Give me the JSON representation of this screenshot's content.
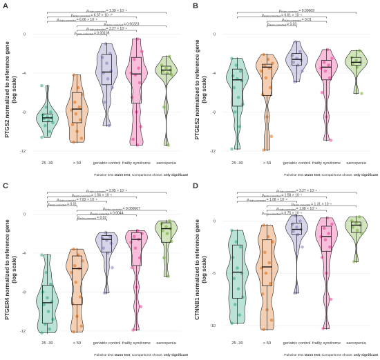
{
  "chart_data": [
    {
      "type": "violin",
      "panel": "A",
      "y_label": [
        "PTGS2 normalized to reference gene",
        "(log scale)"
      ],
      "categories": [
        "25 -30",
        "> 50",
        "geriatric control",
        "frailty syndrome",
        "sarcopenia"
      ],
      "ylim": [
        -12.5,
        2.5
      ],
      "yticks": [
        0,
        -4,
        -8,
        -12
      ],
      "grid": true,
      "groups": [
        {
          "color": "#1b9e77",
          "box": {
            "low": -10.5,
            "q1": -9.0,
            "median": -8.6,
            "q3": -8.2,
            "high": -5.2
          },
          "points": [
            -5.3,
            -7.5,
            -8.0,
            -8.3,
            -8.5,
            -8.6,
            -8.7,
            -8.9,
            -9.1,
            -9.4,
            -10.0,
            -10.6
          ]
        },
        {
          "color": "#d95f02",
          "box": {
            "low": -11.2,
            "q1": -9.1,
            "median": -7.7,
            "q3": -6.0,
            "high": -4.1
          },
          "points": [
            -4.2,
            -5.5,
            -6.2,
            -7.0,
            -7.5,
            -7.8,
            -8.2,
            -8.8,
            -9.3,
            -10.0,
            -10.7,
            -11.1
          ]
        },
        {
          "color": "#7570b3",
          "box": {
            "low": -9.5,
            "q1": -5.2,
            "median": -3.9,
            "q3": -2.1,
            "high": -0.9
          },
          "points": [
            -1.0,
            -2.0,
            -2.4,
            -3.0,
            -3.8,
            -4.0,
            -4.6,
            -5.5,
            -7.0,
            -9.4
          ]
        },
        {
          "color": "#e7298a",
          "box": {
            "low": -11.5,
            "q1": -7.1,
            "median": -4.1,
            "q3": -2.4,
            "high": -0.4
          },
          "points": [
            -0.5,
            -1.8,
            -2.6,
            -3.5,
            -4.0,
            -4.2,
            -5.0,
            -6.5,
            -8.0,
            -9.5,
            -10.8,
            -11.4
          ]
        },
        {
          "color": "#66a61e",
          "box": {
            "low": -11.5,
            "q1": -4.1,
            "median": -3.7,
            "q3": -3.3,
            "high": -2.2
          },
          "points": [
            -2.3,
            -3.2,
            -3.5,
            -3.7,
            -3.8,
            -4.0,
            -4.2,
            -7.5,
            -11.4
          ]
        }
      ],
      "comparisons": [
        {
          "groups": [
            "25 -30",
            "sarcopenia"
          ],
          "label": "= 1.39 × 10⁻⁶"
        },
        {
          "groups": [
            "25 -30",
            "frailty syndrome"
          ],
          "label": "= 6.37 × 10⁻¹⁰"
        },
        {
          "groups": [
            "25 -30",
            "geriatric control"
          ],
          "label": "= 6.06 × 10⁻⁶"
        },
        {
          "groups": [
            "> 50",
            "sarcopenia"
          ],
          "label": "= 0.00323"
        },
        {
          "groups": [
            "> 50",
            "frailty syndrome"
          ],
          "label": "= 2.27 × 10⁻⁶"
        },
        {
          "groups": [
            "> 50",
            "geriatric control"
          ],
          "label": "= 0.00108"
        }
      ]
    },
    {
      "type": "violin",
      "panel": "B",
      "y_label": [
        "PTGES2 normalized to reference gene",
        "(log scale)"
      ],
      "categories": [
        "25 -30",
        "> 50",
        "geriatric control",
        "frailty syndrome",
        "sarcopenia"
      ],
      "ylim": [
        -12.5,
        2.5
      ],
      "yticks": [
        0,
        -4,
        -8,
        -12
      ],
      "grid": true,
      "groups": [
        {
          "color": "#1b9e77",
          "box": {
            "low": -11.9,
            "q1": -7.4,
            "median": -4.7,
            "q3": -3.6,
            "high": -2.4
          },
          "points": [
            -2.5,
            -3.2,
            -3.8,
            -4.3,
            -4.6,
            -4.8,
            -5.5,
            -6.5,
            -7.2,
            -8.0,
            -9.5,
            -11.8
          ]
        },
        {
          "color": "#d95f02",
          "box": {
            "low": -12.0,
            "q1": -6.3,
            "median": -3.4,
            "q3": -3.1,
            "high": -2.0
          },
          "points": [
            -2.1,
            -2.6,
            -3.0,
            -3.3,
            -3.5,
            -3.8,
            -4.5,
            -5.5,
            -6.2,
            -8.5,
            -10.5,
            -11.9
          ]
        },
        {
          "color": "#7570b3",
          "box": {
            "low": -5.0,
            "q1": -3.2,
            "median": -2.6,
            "q3": -2.0,
            "high": -0.8
          },
          "points": [
            -0.8,
            -1.8,
            -2.2,
            -2.5,
            -2.7,
            -2.9,
            -3.2,
            -3.8,
            -4.9
          ]
        },
        {
          "color": "#e7298a",
          "box": {
            "low": -11.0,
            "q1": -4.7,
            "median": -3.4,
            "q3": -2.7,
            "high": -1.5
          },
          "points": [
            -1.6,
            -2.5,
            -2.9,
            -3.2,
            -3.5,
            -3.8,
            -4.5,
            -6.0,
            -8.5,
            -10.9
          ]
        },
        {
          "color": "#66a61e",
          "box": {
            "low": -6.2,
            "q1": -3.2,
            "median": -2.9,
            "q3": -2.4,
            "high": -1.6
          },
          "points": [
            -1.7,
            -2.4,
            -2.7,
            -2.9,
            -3.1,
            -3.4,
            -6.1
          ]
        }
      ],
      "comparisons": [
        {
          "groups": [
            "25 -30",
            "sarcopenia"
          ],
          "label": "= 0.00669"
        },
        {
          "groups": [
            "25 -30",
            "frailty syndrome"
          ],
          "label": "= 6.61 × 10⁻⁵"
        },
        {
          "groups": [
            "> 50",
            "frailty syndrome"
          ],
          "label": "= 0.01"
        },
        {
          "groups": [
            "> 50",
            "geriatric control"
          ],
          "label": "= 0.03"
        }
      ]
    },
    {
      "type": "violin",
      "panel": "C",
      "y_label": [
        "PTGER4 normalized to reference gene",
        "(log scale)"
      ],
      "categories": [
        "25 -30",
        "> 50",
        "geriatric control",
        "frailty syndrome",
        "sarcopenia"
      ],
      "ylim": [
        -12.5,
        2.5
      ],
      "yticks": [
        0,
        -4,
        -8,
        -12
      ],
      "grid": true,
      "groups": [
        {
          "color": "#1b9e77",
          "box": {
            "low": -12.3,
            "q1": -11.2,
            "median": -9.1,
            "q3": -7.3,
            "high": -4.1
          },
          "points": [
            -4.2,
            -6.0,
            -7.2,
            -8.0,
            -8.6,
            -9.0,
            -9.3,
            -10.0,
            -10.8,
            -11.3,
            -11.8,
            -12.2
          ]
        },
        {
          "color": "#d95f02",
          "box": {
            "low": -12.2,
            "q1": -9.3,
            "median": -5.6,
            "q3": -4.3,
            "high": -3.5
          },
          "points": [
            -3.6,
            -4.2,
            -4.8,
            -5.3,
            -5.6,
            -6.0,
            -7.0,
            -8.5,
            -9.2,
            -10.5,
            -11.5,
            -12.1
          ]
        },
        {
          "color": "#7570b3",
          "box": {
            "low": -8.2,
            "q1": -3.9,
            "median": -2.6,
            "q3": -2.2,
            "high": -1.8
          },
          "points": [
            -1.9,
            -2.3,
            -2.5,
            -2.7,
            -3.0,
            -3.5,
            -4.0,
            -5.5,
            -8.1
          ]
        },
        {
          "color": "#e7298a",
          "box": {
            "low": -12.0,
            "q1": -5.3,
            "median": -2.6,
            "q3": -1.9,
            "high": -1.6
          },
          "points": [
            -1.7,
            -2.0,
            -2.3,
            -2.6,
            -2.9,
            -3.5,
            -4.5,
            -5.5,
            -7.5,
            -9.5,
            -11.9
          ]
        },
        {
          "color": "#66a61e",
          "box": {
            "low": -6.5,
            "q1": -2.9,
            "median": -1.5,
            "q3": -0.9,
            "high": -0.6
          },
          "points": [
            -0.7,
            -1.0,
            -1.3,
            -1.5,
            -1.7,
            -2.0,
            -2.8,
            -4.5,
            -6.4
          ]
        }
      ],
      "comparisons": [
        {
          "groups": [
            "25 -30",
            "sarcopenia"
          ],
          "label": "= 2.95 × 10⁻⁸"
        },
        {
          "groups": [
            "25 -30",
            "frailty syndrome"
          ],
          "label": "= 1.56 × 10⁻⁶"
        },
        {
          "groups": [
            "25 -30",
            "geriatric control"
          ],
          "label": "= 7.82 × 10⁻⁶"
        },
        {
          "groups": [
            "25 -30",
            "> 50"
          ],
          "label": "= 0.01"
        },
        {
          "groups": [
            "> 50",
            "sarcopenia"
          ],
          "label": "= 0.000667"
        },
        {
          "groups": [
            "> 50",
            "frailty syndrome"
          ],
          "label": "= 0.0044"
        },
        {
          "groups": [
            "> 50",
            "geriatric control"
          ],
          "label": "= 0.02"
        }
      ]
    },
    {
      "type": "violin",
      "panel": "D",
      "y_label": [
        "CTNNB1 normalized to reference gene",
        "(log scale)"
      ],
      "categories": [
        "25 -30",
        "> 50",
        "geriatric control",
        "frailty syndrome",
        "sarcopenia"
      ],
      "ylim": [
        -11,
        3
      ],
      "yticks": [
        0,
        -5,
        -10
      ],
      "grid": true,
      "groups": [
        {
          "color": "#1b9e77",
          "box": {
            "low": -9.9,
            "q1": -7.4,
            "median": -4.9,
            "q3": -2.3,
            "high": -0.8
          },
          "points": [
            -0.9,
            -2.0,
            -2.5,
            -3.5,
            -4.5,
            -5.0,
            -5.5,
            -6.5,
            -7.3,
            -8.0,
            -9.0,
            -9.8
          ]
        },
        {
          "color": "#d95f02",
          "box": {
            "low": -10.5,
            "q1": -6.2,
            "median": -4.4,
            "q3": -1.8,
            "high": -0.3
          },
          "points": [
            -0.4,
            -1.5,
            -2.0,
            -3.0,
            -4.0,
            -4.5,
            -5.0,
            -6.0,
            -7.0,
            -8.5,
            -9.5,
            -10.4
          ]
        },
        {
          "color": "#7570b3",
          "box": {
            "low": -7.0,
            "q1": -1.3,
            "median": -0.8,
            "q3": -0.2,
            "high": 0.6
          },
          "points": [
            0.5,
            0.0,
            -0.3,
            -0.6,
            -0.8,
            -1.0,
            -1.3,
            -2.5,
            -6.9
          ]
        },
        {
          "color": "#e7298a",
          "box": {
            "low": -10.4,
            "q1": -2.9,
            "median": -1.5,
            "q3": -0.5,
            "high": 0.4
          },
          "points": [
            0.3,
            -0.3,
            -0.7,
            -1.2,
            -1.5,
            -1.8,
            -2.5,
            -3.5,
            -5.0,
            -7.5,
            -10.3
          ]
        },
        {
          "color": "#66a61e",
          "box": {
            "low": -4.0,
            "q1": -1.1,
            "median": -0.4,
            "q3": -0.1,
            "high": 0.5
          },
          "points": [
            0.4,
            0.0,
            -0.2,
            -0.4,
            -0.6,
            -0.9,
            -1.2,
            -3.9
          ]
        }
      ],
      "comparisons": [
        {
          "groups": [
            "25 -30",
            "sarcopenia"
          ],
          "label": "= 3.27 × 10⁻⁶"
        },
        {
          "groups": [
            "25 -30",
            "frailty syndrome"
          ],
          "label": "= 1.58 × 10⁻⁷"
        },
        {
          "groups": [
            "25 -30",
            "geriatric control"
          ],
          "label": "= 1.08 × 10⁻⁶"
        },
        {
          "groups": [
            "> 50",
            "sarcopenia"
          ],
          "label": "= 1.31 × 10⁻⁶"
        },
        {
          "groups": [
            "> 50",
            "frailty syndrome"
          ],
          "label": "= 1.08 × 10⁻⁶"
        },
        {
          "groups": [
            "> 50",
            "geriatric control"
          ],
          "label": "= 6.75 × 10⁻⁶"
        }
      ]
    }
  ],
  "annotation": {
    "p_symbol": "p",
    "p_subscript": "Holm-corrected"
  },
  "footer": {
    "test_label": "Pairwise test:",
    "test": "Dunn test",
    "shown_label": "; Comparisons shown:",
    "shown": "only significant"
  }
}
